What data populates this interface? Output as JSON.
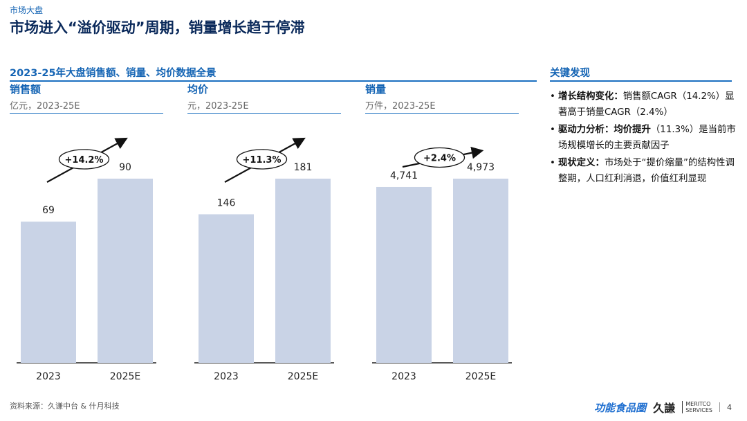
{
  "header": {
    "section_tag": "市场大盘",
    "title": "市场进入“溢价驱动”周期，销量增长趋于停滞"
  },
  "panel": {
    "title": "2023-25年大盘销售额、销量、均价数据全景"
  },
  "chart_data": [
    {
      "type": "bar",
      "title": "销售额",
      "subtitle": "亿元，2023-25E",
      "categories": [
        "2023",
        "2025E"
      ],
      "values": [
        69,
        90
      ],
      "data_labels": [
        "69",
        "90"
      ],
      "growth_label": "+14.2%",
      "color": "#c9d3e6"
    },
    {
      "type": "bar",
      "title": "均价",
      "subtitle": "元，2023-25E",
      "categories": [
        "2023",
        "2025E"
      ],
      "values": [
        146,
        181
      ],
      "data_labels": [
        "146",
        "181"
      ],
      "growth_label": "+11.3%",
      "color": "#c9d3e6"
    },
    {
      "type": "bar",
      "title": "销量",
      "subtitle": "万件，2023-25E",
      "categories": [
        "2023",
        "2025E"
      ],
      "values": [
        4741,
        4973
      ],
      "data_labels": [
        "4,741",
        "4,973"
      ],
      "growth_label": "+2.4%",
      "color": "#c9d3e6"
    }
  ],
  "key_findings": {
    "title": "关键发现",
    "items": [
      {
        "bullet": "•",
        "bold": "增长结构变化：",
        "text": "销售额CAGR（14.2%）显著高于销量CAGR（2.4%）"
      },
      {
        "bullet": "•",
        "bold": "驱动力分析：均价提升",
        "text": "（11.3%）是当前市场规模增长的主要贡献因子"
      },
      {
        "bullet": "•",
        "bold": "现状定义：",
        "text": "市场处于“提价缩量”的结构性调整期，人口红利消退，价值红利显现"
      }
    ]
  },
  "footer": {
    "source": "资料来源：久谦中台 & 什月科技",
    "logo_main": "功能食品圈",
    "logo_jiu": "久謙",
    "logo_meritco_1": "MERITCO",
    "logo_meritco_2": "SERVICES",
    "page_number": "4"
  },
  "colors": {
    "accent": "#1464b4",
    "title": "#0b2a5b",
    "bar": "#c9d3e6"
  }
}
